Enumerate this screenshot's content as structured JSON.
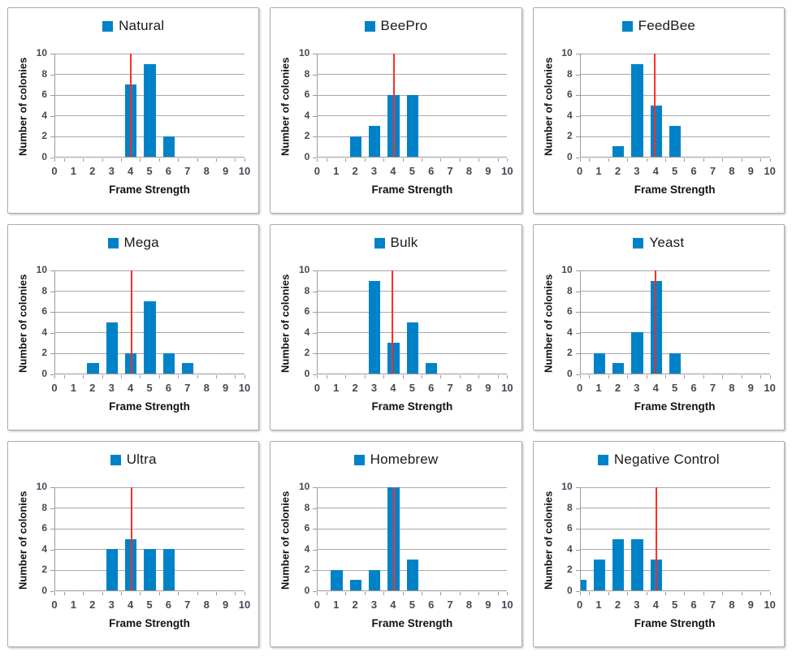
{
  "shared": {
    "ylabel": "Number of colonies",
    "xlabel": "Frame Strength",
    "ylim": [
      0,
      10
    ],
    "xlim": [
      0,
      10
    ],
    "yticks": [
      0,
      2,
      4,
      6,
      8,
      10
    ],
    "xticks": [
      0,
      1,
      2,
      3,
      4,
      5,
      6,
      7,
      8,
      9,
      10
    ],
    "grid": "horizontal",
    "legend_position": "top-center",
    "colors": {
      "bar": "#0082c8",
      "reference_line": "#ff2f26",
      "gridline": "#a8a8a8",
      "axis": "#9b9b9b",
      "tick_label": "#474757",
      "axis_title": "#121212",
      "panel_border": "#ababab"
    }
  },
  "chart_data": [
    {
      "type": "bar",
      "legend": "Natural",
      "categories": [
        0,
        1,
        2,
        3,
        4,
        5,
        6,
        7,
        8,
        9,
        10
      ],
      "values": [
        0,
        0,
        0,
        0,
        7,
        9,
        2,
        0,
        0,
        0,
        0
      ],
      "ref_line_x": 3.97,
      "xlabel": "Frame Strength",
      "ylabel": "Number of colonies",
      "ylim": [
        0,
        10
      ]
    },
    {
      "type": "bar",
      "legend": "BeePro",
      "categories": [
        0,
        1,
        2,
        3,
        4,
        5,
        6,
        7,
        8,
        9,
        10
      ],
      "values": [
        0,
        0,
        2,
        3,
        6,
        6,
        0,
        0,
        0,
        0,
        0
      ],
      "ref_line_x": 4.0,
      "xlabel": "Frame Strength",
      "ylabel": "Number of colonies",
      "ylim": [
        0,
        10
      ]
    },
    {
      "type": "bar",
      "legend": "FeedBee",
      "categories": [
        0,
        1,
        2,
        3,
        4,
        5,
        6,
        7,
        8,
        9,
        10
      ],
      "values": [
        0,
        0,
        1,
        9,
        5,
        3,
        0,
        0,
        0,
        0,
        0
      ],
      "ref_line_x": 3.93,
      "xlabel": "Frame Strength",
      "ylabel": "Number of colonies",
      "ylim": [
        0,
        10
      ]
    },
    {
      "type": "bar",
      "legend": "Mega",
      "categories": [
        0,
        1,
        2,
        3,
        4,
        5,
        6,
        7,
        8,
        9,
        10
      ],
      "values": [
        0,
        0,
        1,
        5,
        2,
        7,
        2,
        1,
        0,
        0,
        0
      ],
      "ref_line_x": 4.03,
      "xlabel": "Frame Strength",
      "ylabel": "Number of colonies",
      "ylim": [
        0,
        10
      ]
    },
    {
      "type": "bar",
      "legend": "Bulk",
      "categories": [
        0,
        1,
        2,
        3,
        4,
        5,
        6,
        7,
        8,
        9,
        10
      ],
      "values": [
        0,
        0,
        0,
        9,
        3,
        5,
        1,
        0,
        0,
        0,
        0
      ],
      "ref_line_x": 3.95,
      "xlabel": "Frame Strength",
      "ylabel": "Number of colonies",
      "ylim": [
        0,
        10
      ]
    },
    {
      "type": "bar",
      "legend": "Yeast",
      "categories": [
        0,
        1,
        2,
        3,
        4,
        5,
        6,
        7,
        8,
        9,
        10
      ],
      "values": [
        0,
        2,
        1,
        4,
        9,
        2,
        0,
        0,
        0,
        0,
        0
      ],
      "ref_line_x": 3.98,
      "xlabel": "Frame Strength",
      "ylabel": "Number of colonies",
      "ylim": [
        0,
        10
      ]
    },
    {
      "type": "bar",
      "legend": "Ultra",
      "categories": [
        0,
        1,
        2,
        3,
        4,
        5,
        6,
        7,
        8,
        9,
        10
      ],
      "values": [
        0,
        0,
        0,
        4,
        5,
        4,
        4,
        0,
        0,
        0,
        0
      ],
      "ref_line_x": 4.03,
      "xlabel": "Frame Strength",
      "ylabel": "Number of colonies",
      "ylim": [
        0,
        10
      ]
    },
    {
      "type": "bar",
      "legend": "Homebrew",
      "categories": [
        0,
        1,
        2,
        3,
        4,
        5,
        6,
        7,
        8,
        9,
        10
      ],
      "values": [
        0,
        2,
        1,
        2,
        10,
        3,
        0,
        0,
        0,
        0,
        0
      ],
      "ref_line_x": 4.0,
      "xlabel": "Frame Strength",
      "ylabel": "Number of colonies",
      "ylim": [
        0,
        10
      ]
    },
    {
      "type": "bar",
      "legend": "Negative Control",
      "categories": [
        0,
        1,
        2,
        3,
        4,
        5,
        6,
        7,
        8,
        9,
        10
      ],
      "values": [
        1,
        3,
        5,
        5,
        3,
        0,
        0,
        0,
        0,
        0,
        0
      ],
      "ref_line_x": 4.0,
      "xlabel": "Frame Strength",
      "ylabel": "Number of colonies",
      "ylim": [
        0,
        10
      ]
    }
  ]
}
